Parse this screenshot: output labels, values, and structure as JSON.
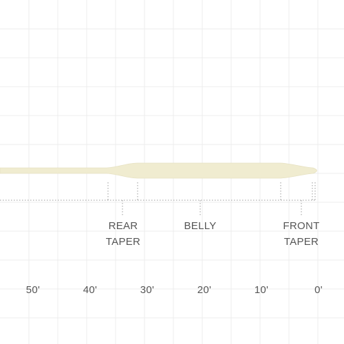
{
  "segments": [
    {
      "lines": [
        "REAR",
        "TAPER"
      ]
    },
    {
      "lines": [
        "BELLY"
      ]
    },
    {
      "lines": [
        "FRONT",
        "TAPER"
      ]
    }
  ],
  "axis_labels": [
    "50'",
    "40'",
    "30'",
    "20'",
    "10'",
    "0'"
  ]
}
